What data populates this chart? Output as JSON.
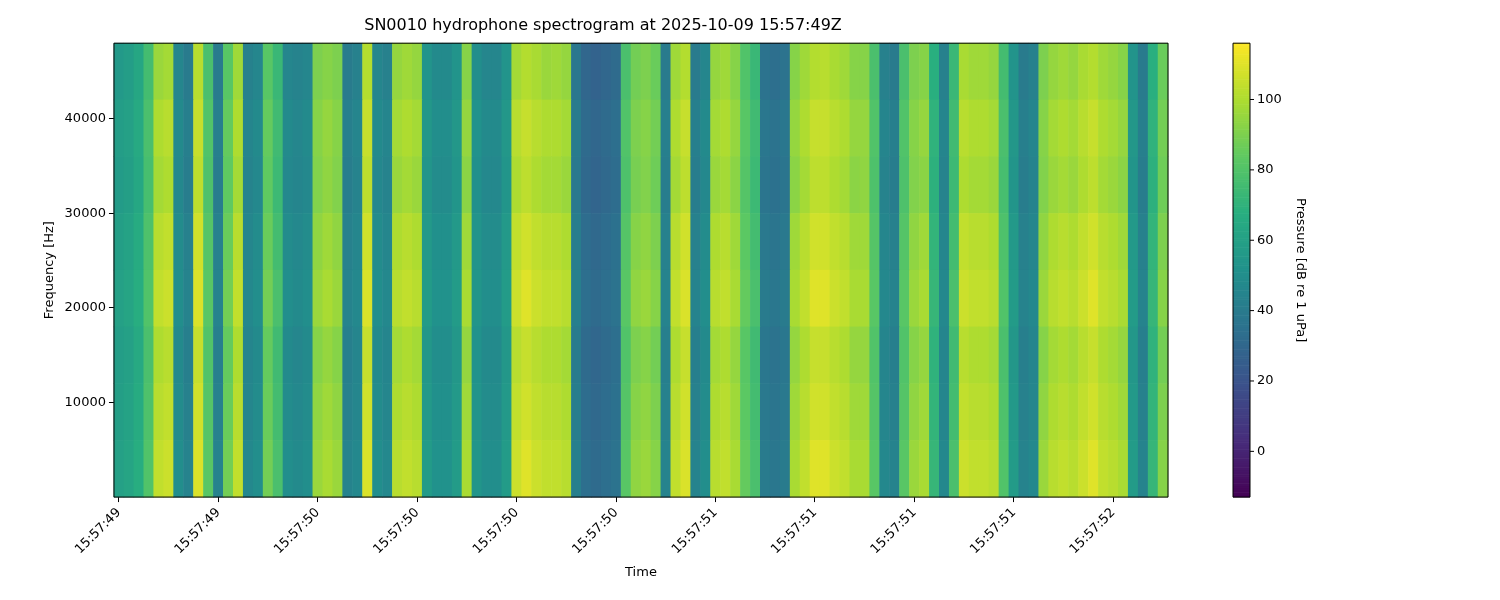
{
  "chart_data": {
    "type": "heatmap",
    "title": "SN0010 hydrophone spectrogram at 2025-10-09 15:57:49Z",
    "xlabel": "Time",
    "ylabel": "Frequency [Hz]",
    "clabel": "Pressure [dB re 1 uPa]",
    "categories": [
      "15:57:49",
      null,
      null,
      null,
      null,
      null,
      null,
      null,
      null,
      null,
      "15:57:49",
      null,
      null,
      null,
      null,
      null,
      null,
      null,
      null,
      null,
      "15:57:50",
      null,
      null,
      null,
      null,
      null,
      null,
      null,
      null,
      null,
      "15:57:50",
      null,
      null,
      null,
      null,
      null,
      null,
      null,
      null,
      null,
      "15:57:50",
      null,
      null,
      null,
      null,
      null,
      null,
      null,
      null,
      null,
      "15:57:50",
      null,
      null,
      null,
      null,
      null,
      null,
      null,
      null,
      null,
      "15:57:51",
      null,
      null,
      null,
      null,
      null,
      null,
      null,
      null,
      null,
      "15:57:51",
      null,
      null,
      null,
      null,
      null,
      null,
      null,
      null,
      null,
      "15:57:51",
      null,
      null,
      null,
      null,
      null,
      null,
      null,
      null,
      null,
      "15:57:51",
      null,
      null,
      null,
      null,
      null,
      null,
      null,
      null,
      null,
      "15:57:52",
      null,
      null,
      null,
      null,
      null
    ],
    "ylim": [
      0,
      48000
    ],
    "yticks": [
      10000,
      20000,
      30000,
      40000
    ],
    "clim": [
      -13,
      116
    ],
    "cticks": [
      0,
      20,
      40,
      60,
      80,
      100
    ],
    "cells": [
      [
        56,
        58,
        63,
        76,
        96,
        98,
        46,
        40,
        102,
        78,
        40,
        82,
        97,
        43,
        46,
        82,
        73,
        46,
        44,
        46,
        90,
        92,
        90,
        40,
        43,
        101,
        46,
        43,
        95,
        97,
        95,
        53,
        48,
        48,
        53,
        92,
        50,
        46,
        46,
        53,
        98,
        101,
        99,
        96,
        97,
        95,
        38,
        30,
        28,
        30,
        32,
        78,
        88,
        90,
        86,
        40,
        97,
        101,
        40,
        46,
        95,
        97,
        92,
        80,
        73,
        36,
        34,
        36,
        92,
        97,
        101,
        102,
        99,
        97,
        92,
        92,
        78,
        43,
        40,
        78,
        90,
        92,
        68,
        43,
        73,
        99,
        97,
        97,
        95,
        76,
        53,
        40,
        43,
        90,
        95,
        97,
        95,
        99,
        101,
        97,
        95,
        92,
        53,
        40,
        68,
        86
      ],
      [
        58,
        60,
        65,
        78,
        100,
        102,
        48,
        42,
        105,
        80,
        42,
        85,
        100,
        45,
        48,
        85,
        75,
        48,
        46,
        48,
        92,
        95,
        92,
        42,
        45,
        105,
        48,
        45,
        98,
        100,
        98,
        55,
        50,
        50,
        55,
        95,
        52,
        48,
        48,
        55,
        102,
        105,
        102,
        100,
        100,
        98,
        40,
        32,
        30,
        32,
        34,
        80,
        90,
        92,
        88,
        42,
        100,
        105,
        42,
        48,
        98,
        100,
        95,
        82,
        75,
        38,
        36,
        38,
        95,
        100,
        105,
        105,
        102,
        100,
        95,
        95,
        80,
        45,
        42,
        80,
        92,
        95,
        70,
        45,
        75,
        102,
        100,
        100,
        98,
        78,
        55,
        42,
        45,
        92,
        98,
        100,
        98,
        102,
        105,
        100,
        98,
        95,
        55,
        42,
        70,
        88
      ],
      [
        57,
        59,
        64,
        77,
        98,
        100,
        47,
        41,
        103,
        79,
        41,
        84,
        98,
        44,
        47,
        84,
        74,
        47,
        45,
        47,
        91,
        94,
        91,
        41,
        44,
        103,
        47,
        44,
        96,
        98,
        96,
        54,
        49,
        49,
        54,
        93,
        51,
        47,
        47,
        54,
        100,
        103,
        100,
        98,
        98,
        96,
        39,
        31,
        29,
        31,
        33,
        79,
        89,
        91,
        87,
        41,
        98,
        103,
        41,
        47,
        96,
        98,
        93,
        81,
        74,
        37,
        35,
        37,
        93,
        98,
        103,
        103,
        100,
        98,
        93,
        94,
        79,
        44,
        41,
        79,
        91,
        93,
        69,
        44,
        74,
        100,
        98,
        98,
        96,
        77,
        54,
        41,
        44,
        91,
        96,
        98,
        96,
        100,
        103,
        98,
        96,
        93,
        54,
        41,
        69,
        87
      ],
      [
        59,
        61,
        66,
        79,
        102,
        104,
        49,
        43,
        107,
        81,
        43,
        86,
        102,
        46,
        49,
        86,
        76,
        49,
        47,
        49,
        94,
        97,
        94,
        43,
        46,
        107,
        49,
        46,
        100,
        102,
        100,
        56,
        51,
        51,
        56,
        97,
        53,
        49,
        49,
        56,
        104,
        107,
        104,
        102,
        102,
        100,
        41,
        33,
        31,
        33,
        35,
        81,
        92,
        94,
        90,
        43,
        102,
        107,
        43,
        49,
        100,
        102,
        97,
        83,
        76,
        39,
        37,
        39,
        97,
        102,
        107,
        107,
        104,
        102,
        97,
        97,
        81,
        46,
        43,
        81,
        94,
        97,
        71,
        46,
        76,
        104,
        102,
        102,
        100,
        79,
        56,
        43,
        46,
        94,
        100,
        102,
        100,
        104,
        107,
        102,
        100,
        97,
        56,
        43,
        71,
        90
      ],
      [
        60,
        62,
        67,
        80,
        104,
        106,
        50,
        44,
        109,
        82,
        44,
        88,
        104,
        47,
        50,
        88,
        78,
        50,
        48,
        50,
        96,
        99,
        96,
        44,
        47,
        109,
        50,
        47,
        102,
        104,
        102,
        57,
        52,
        52,
        57,
        99,
        54,
        50,
        50,
        57,
        106,
        110,
        106,
        104,
        104,
        102,
        42,
        34,
        32,
        34,
        36,
        82,
        94,
        96,
        92,
        44,
        104,
        109,
        44,
        50,
        102,
        104,
        99,
        85,
        78,
        40,
        38,
        40,
        99,
        104,
        110,
        110,
        106,
        104,
        99,
        99,
        82,
        47,
        44,
        82,
        96,
        99,
        72,
        47,
        78,
        106,
        104,
        104,
        102,
        80,
        57,
        44,
        47,
        96,
        102,
        104,
        102,
        106,
        110,
        104,
        102,
        99,
        57,
        44,
        72,
        92
      ],
      [
        58,
        60,
        65,
        78,
        100,
        102,
        48,
        42,
        105,
        80,
        42,
        85,
        100,
        45,
        48,
        85,
        75,
        48,
        46,
        48,
        92,
        95,
        92,
        42,
        45,
        105,
        48,
        45,
        98,
        100,
        98,
        55,
        50,
        50,
        55,
        95,
        52,
        48,
        48,
        55,
        102,
        105,
        102,
        100,
        100,
        98,
        40,
        32,
        30,
        32,
        34,
        80,
        90,
        92,
        88,
        42,
        100,
        105,
        42,
        48,
        98,
        100,
        95,
        82,
        75,
        38,
        36,
        38,
        95,
        100,
        105,
        105,
        102,
        100,
        95,
        95,
        80,
        45,
        42,
        80,
        92,
        95,
        70,
        45,
        75,
        102,
        100,
        100,
        98,
        78,
        55,
        42,
        45,
        92,
        98,
        100,
        98,
        102,
        105,
        100,
        98,
        95,
        55,
        42,
        70,
        88
      ],
      [
        59,
        61,
        66,
        79,
        102,
        104,
        49,
        43,
        107,
        81,
        43,
        86,
        102,
        46,
        49,
        86,
        76,
        49,
        47,
        49,
        94,
        97,
        94,
        43,
        46,
        107,
        49,
        46,
        100,
        102,
        100,
        56,
        51,
        51,
        56,
        97,
        53,
        49,
        49,
        56,
        104,
        107,
        104,
        102,
        102,
        100,
        41,
        33,
        31,
        33,
        35,
        81,
        92,
        94,
        90,
        43,
        102,
        107,
        43,
        49,
        100,
        102,
        97,
        83,
        76,
        39,
        37,
        39,
        97,
        102,
        107,
        107,
        104,
        102,
        97,
        97,
        81,
        46,
        43,
        81,
        94,
        97,
        71,
        46,
        76,
        104,
        102,
        102,
        100,
        79,
        56,
        43,
        46,
        94,
        100,
        102,
        100,
        104,
        107,
        102,
        100,
        97,
        56,
        43,
        71,
        90
      ],
      [
        60,
        62,
        67,
        80,
        104,
        106,
        50,
        44,
        109,
        82,
        44,
        88,
        104,
        47,
        50,
        88,
        78,
        50,
        48,
        50,
        96,
        99,
        96,
        44,
        47,
        109,
        50,
        47,
        102,
        104,
        102,
        57,
        52,
        52,
        57,
        99,
        54,
        50,
        50,
        57,
        106,
        110,
        106,
        104,
        104,
        102,
        42,
        34,
        32,
        34,
        36,
        82,
        94,
        96,
        92,
        44,
        104,
        109,
        44,
        50,
        102,
        104,
        99,
        85,
        78,
        40,
        38,
        40,
        99,
        104,
        110,
        110,
        106,
        104,
        99,
        99,
        82,
        47,
        44,
        82,
        96,
        99,
        72,
        47,
        78,
        106,
        104,
        104,
        102,
        80,
        57,
        44,
        47,
        96,
        102,
        104,
        102,
        106,
        110,
        104,
        102,
        99,
        57,
        44,
        72,
        92
      ]
    ]
  }
}
